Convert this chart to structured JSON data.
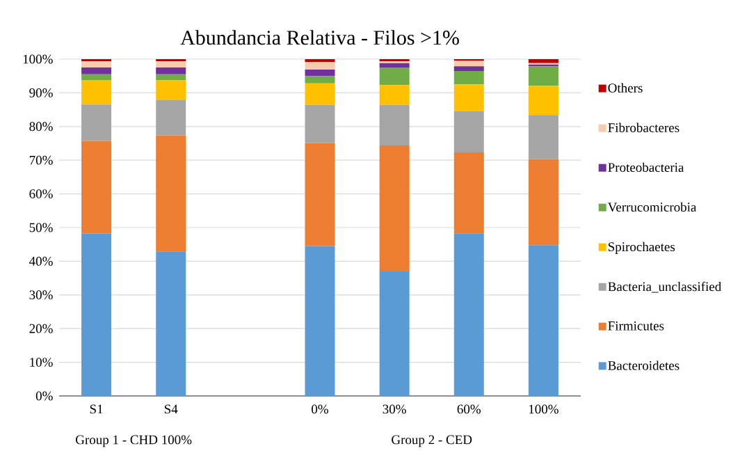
{
  "chart_data": {
    "type": "bar",
    "stacked": true,
    "title": "Abundancia Relativa - Filos  >1%",
    "categories": [
      "S1",
      "S4",
      null,
      "0%",
      "30%",
      "60%",
      "100%"
    ],
    "series": [
      {
        "name": "Bacteroidetes",
        "color": "#5b9bd5",
        "values": [
          48.2,
          42.9,
          null,
          44.5,
          37.0,
          48.3,
          44.8
        ]
      },
      {
        "name": "Firmicutes",
        "color": "#ed7d31",
        "values": [
          27.5,
          34.5,
          null,
          30.6,
          37.4,
          24.0,
          25.5
        ]
      },
      {
        "name": "Bacteria_unclassified",
        "color": "#a5a5a5",
        "values": [
          10.8,
          10.4,
          null,
          11.3,
          12.0,
          12.3,
          13.1
        ]
      },
      {
        "name": "Spirochaetes",
        "color": "#ffc000",
        "values": [
          7.3,
          5.9,
          null,
          6.4,
          5.9,
          7.9,
          8.7
        ]
      },
      {
        "name": "Verrucomicrobia",
        "color": "#70ad47",
        "values": [
          1.7,
          1.8,
          null,
          2.2,
          5.2,
          4.0,
          5.8
        ]
      },
      {
        "name": "Proteobacteria",
        "color": "#7030a0",
        "values": [
          2.0,
          2.0,
          null,
          1.9,
          1.3,
          1.4,
          0.5
        ]
      },
      {
        "name": "Fibrobacteres",
        "color": "#f8cbad",
        "values": [
          1.9,
          1.9,
          null,
          2.2,
          0.6,
          1.6,
          0.4
        ]
      },
      {
        "name": "Others",
        "color": "#c00000",
        "values": [
          0.6,
          0.6,
          null,
          0.9,
          0.6,
          0.5,
          1.2
        ]
      }
    ],
    "ylim": [
      0,
      100
    ],
    "yticks": [
      {
        "value": 0,
        "label": "0%"
      },
      {
        "value": 10,
        "label": "10%"
      },
      {
        "value": 20,
        "label": "20%"
      },
      {
        "value": 30,
        "label": "30%"
      },
      {
        "value": 40,
        "label": "40%"
      },
      {
        "value": 50,
        "label": "50%"
      },
      {
        "value": 60,
        "label": "60%"
      },
      {
        "value": 70,
        "label": "70%"
      },
      {
        "value": 80,
        "label": "80%"
      },
      {
        "value": 90,
        "label": "90%"
      },
      {
        "value": 100,
        "label": "100%"
      }
    ],
    "grid": "y",
    "legend": "right",
    "annotations": [
      "Group 1 - CHD 100%",
      "Group 2 - CED"
    ]
  }
}
